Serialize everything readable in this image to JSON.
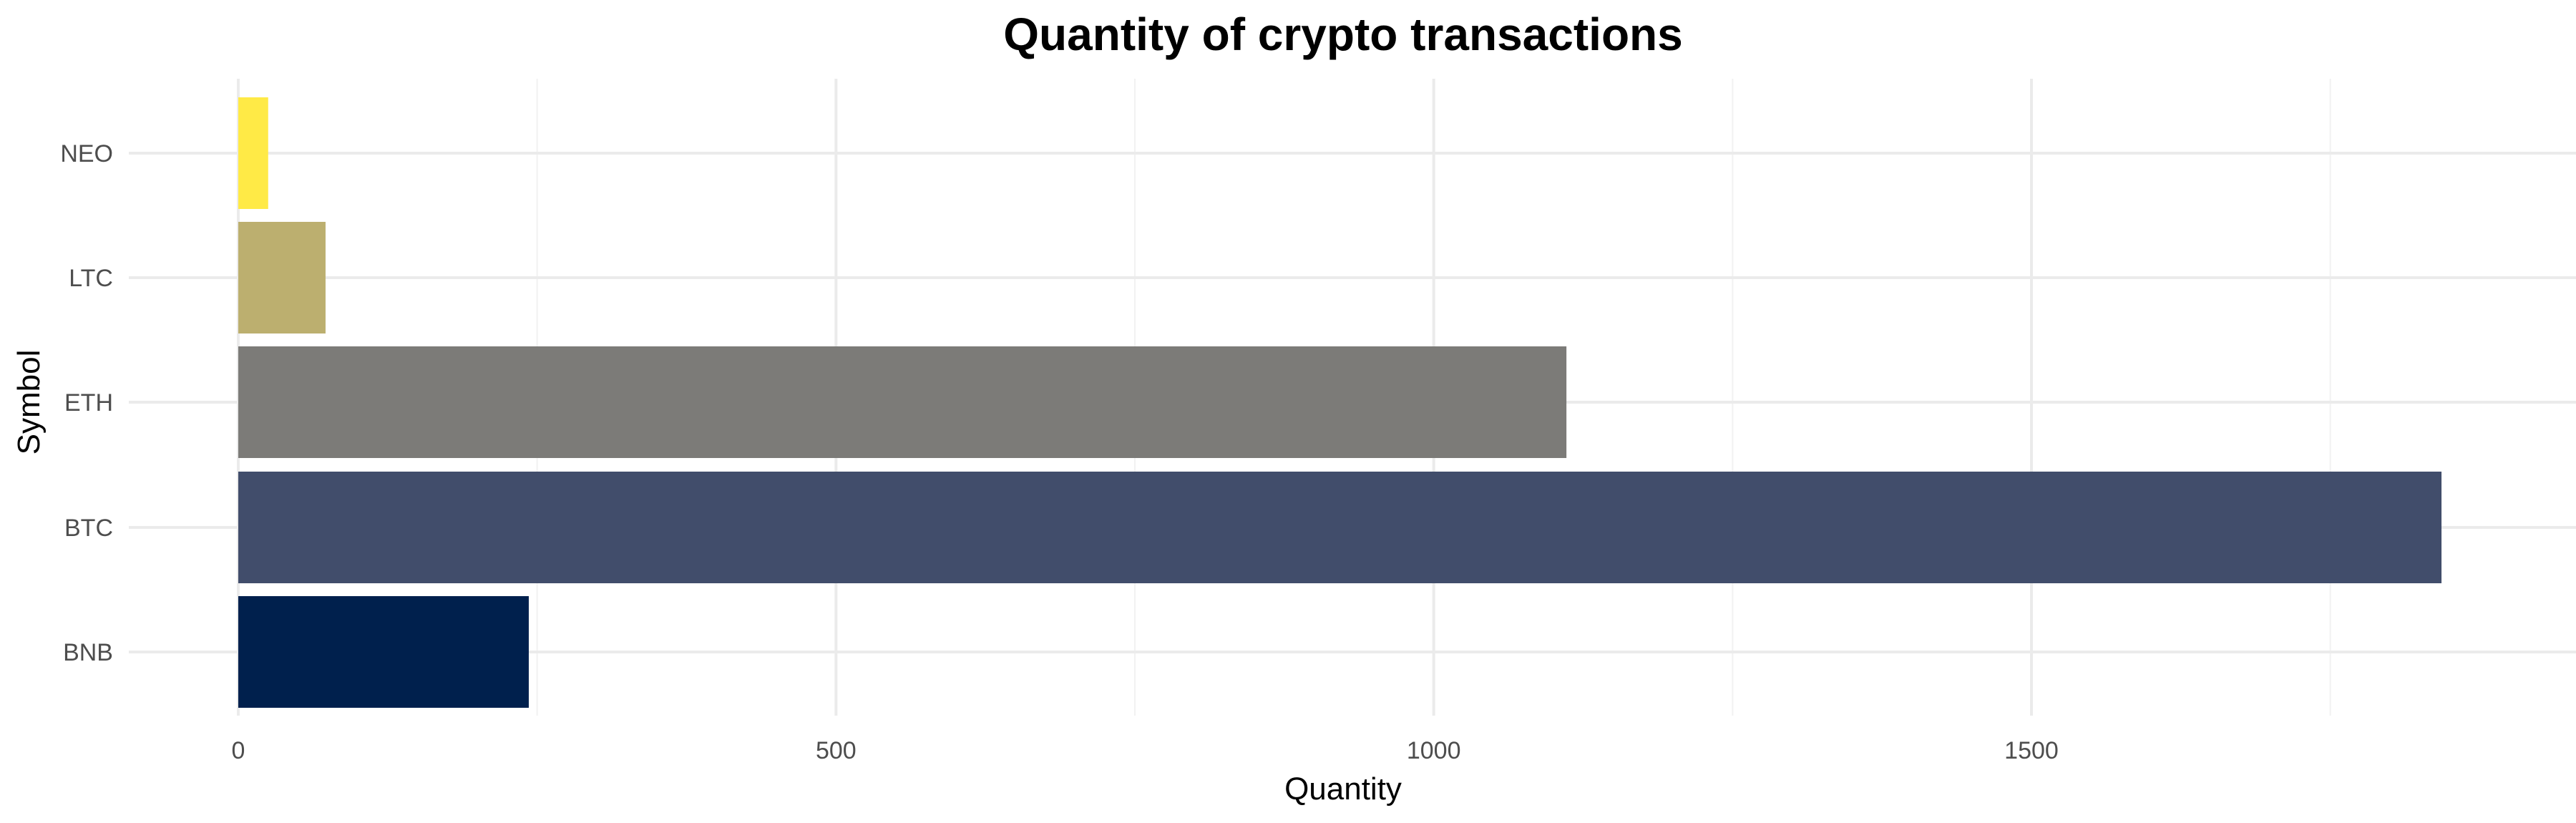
{
  "chart_data": {
    "type": "bar",
    "orientation": "horizontal",
    "title": "Quantity of crypto transactions",
    "xlabel": "Quantity",
    "ylabel": "Symbol",
    "categories": [
      "BNB",
      "BTC",
      "ETH",
      "LTC",
      "NEO"
    ],
    "values": [
      243,
      1843,
      1111,
      73,
      25
    ],
    "colors": [
      "#00204D",
      "#414D6B",
      "#7C7B78",
      "#BCAF6F",
      "#FFEA46"
    ],
    "xlim": [
      0,
      1900
    ],
    "x_ticks": [
      0,
      500,
      1000,
      1500
    ],
    "x_tick_labels": [
      "0",
      "500",
      "1000",
      "1500"
    ],
    "x_minor_ticks": [
      250,
      750,
      1250,
      1750
    ],
    "grid": true,
    "legend": "none",
    "theme": "minimal"
  }
}
